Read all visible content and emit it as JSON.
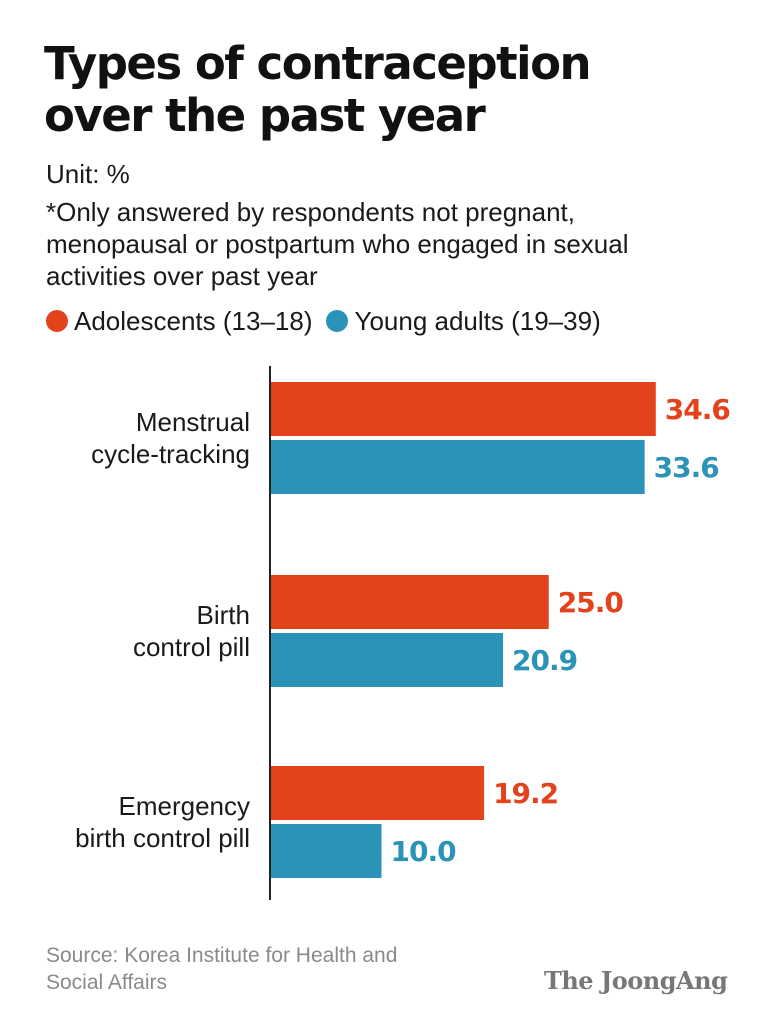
{
  "header": {
    "title_lines": [
      "Types of contraception",
      "over the past year"
    ],
    "unit": "Unit: %",
    "note_lines": [
      "*Only answered by respondents not pregnant,",
      "menopausal or postpartum who engaged in sexual",
      "activities over past year"
    ]
  },
  "legend": {
    "items": [
      {
        "label": "Adolescents (13–18)",
        "color": "#e2431c"
      },
      {
        "label": "Young adults (19–39)",
        "color": "#2b93b7"
      }
    ]
  },
  "chart_data": {
    "type": "bar",
    "orientation": "horizontal",
    "categories": [
      [
        "Menstrual",
        "cycle-tracking"
      ],
      [
        "Birth",
        "control pill"
      ],
      [
        "Emergency",
        "birth control pill"
      ]
    ],
    "series": [
      {
        "name": "Adolescents (13–18)",
        "color": "#e2431c",
        "values": [
          34.6,
          25.0,
          19.2
        ],
        "labels": [
          "34.6",
          "25.0",
          "19.2"
        ]
      },
      {
        "name": "Young adults (19–39)",
        "color": "#2b93b7",
        "values": [
          33.6,
          20.9,
          10.0
        ],
        "labels": [
          "33.6",
          "20.9",
          "10.0"
        ]
      }
    ],
    "xlim": [
      0,
      40
    ],
    "grid": false,
    "legend_position": "top"
  },
  "footer": {
    "source_lines": [
      "Source: Korea Institute for Health and",
      "Social Affairs"
    ],
    "brand": "The JoongAng"
  }
}
